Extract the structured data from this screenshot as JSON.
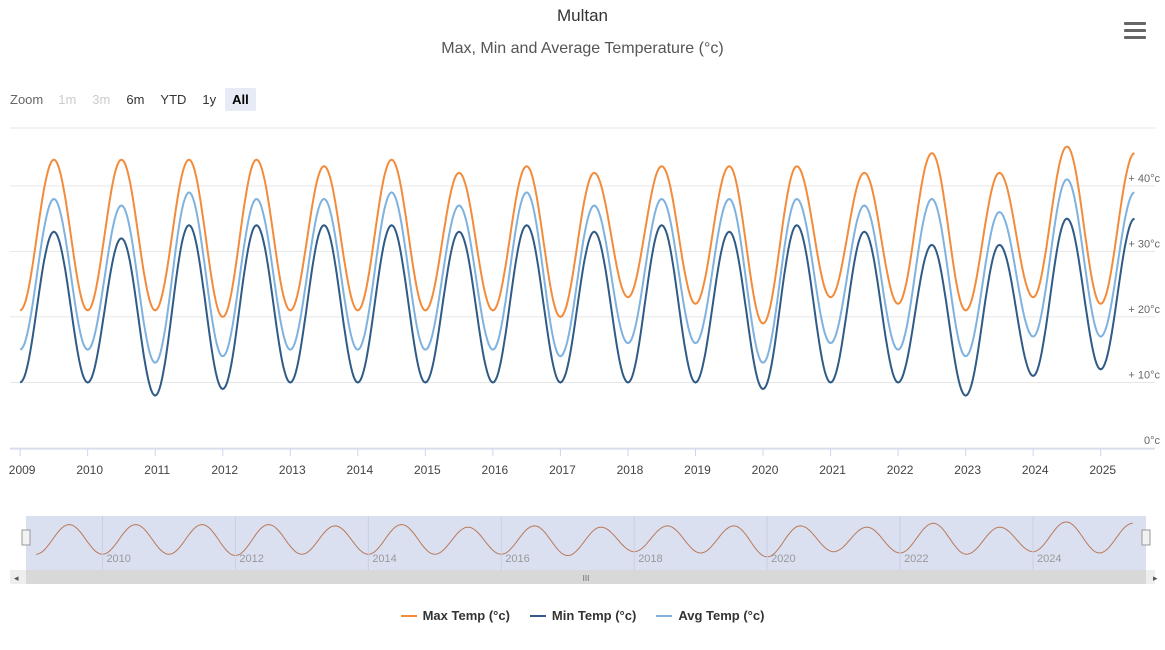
{
  "header": {
    "title": "Multan",
    "subtitle": "Max, Min and Average Temperature (°c)"
  },
  "menu": {
    "icon": "hamburger-menu-icon"
  },
  "zoom": {
    "label": "Zoom",
    "buttons": [
      {
        "label": "1m",
        "state": "disabled"
      },
      {
        "label": "3m",
        "state": "disabled"
      },
      {
        "label": "6m",
        "state": "normal"
      },
      {
        "label": "YTD",
        "state": "normal"
      },
      {
        "label": "1y",
        "state": "normal"
      },
      {
        "label": "All",
        "state": "active"
      }
    ]
  },
  "navigator": {
    "x_labels": [
      "2010",
      "2012",
      "2014",
      "2016",
      "2018",
      "2020",
      "2022",
      "2024"
    ],
    "scrollbar_grip": "III"
  },
  "colors": {
    "max": "#f28c3c",
    "min": "#2f5b86",
    "avg": "#7fb2df",
    "grid": "#e6e6e6",
    "navigator_mask": "#d7ddef"
  },
  "chart_data": {
    "type": "line",
    "title": "Multan",
    "subtitle": "Max, Min and Average Temperature (°c)",
    "x_tick_labels": [
      "2009",
      "2010",
      "2011",
      "2012",
      "2013",
      "2014",
      "2015",
      "2016",
      "2017",
      "2018",
      "2019",
      "2020",
      "2021",
      "2022",
      "2023",
      "2024",
      "2025"
    ],
    "y_tick_labels": [
      "0°c",
      "+ 10°c",
      "+ 20°c",
      "+ 30°c",
      "+ 40°c"
    ],
    "y_ticks": [
      0,
      10,
      20,
      30,
      40
    ],
    "ylim": [
      0,
      47
    ],
    "x_range": [
      2008.85,
      2025.7
    ],
    "grid": true,
    "y_axis_side": "right",
    "legend_position": "bottom-center",
    "series": [
      {
        "name": "Max Temp (°c)",
        "color": "#f28c3c",
        "annual_peak": 44,
        "annual_trough": 21,
        "x": [
          2009.0,
          2009.5,
          2010.0,
          2010.5,
          2011.0,
          2011.5,
          2012.0,
          2012.5,
          2013.0,
          2013.5,
          2014.0,
          2014.5,
          2015.0,
          2015.5,
          2016.0,
          2016.5,
          2017.0,
          2017.5,
          2018.0,
          2018.5,
          2019.0,
          2019.5,
          2020.0,
          2020.5,
          2021.0,
          2021.5,
          2022.0,
          2022.5,
          2023.0,
          2023.5,
          2024.0,
          2024.5,
          2025.0,
          2025.5
        ],
        "values": [
          21,
          44,
          21,
          44,
          21,
          44,
          20,
          44,
          21,
          43,
          21,
          44,
          21,
          42,
          21,
          43,
          20,
          42,
          23,
          43,
          22,
          43,
          19,
          43,
          23,
          42,
          22,
          45,
          21,
          42,
          23,
          46,
          22,
          45
        ]
      },
      {
        "name": "Min Temp (°c)",
        "color": "#2f5b86",
        "annual_peak": 33,
        "annual_trough": 9,
        "x": [
          2009.0,
          2009.5,
          2010.0,
          2010.5,
          2011.0,
          2011.5,
          2012.0,
          2012.5,
          2013.0,
          2013.5,
          2014.0,
          2014.5,
          2015.0,
          2015.5,
          2016.0,
          2016.5,
          2017.0,
          2017.5,
          2018.0,
          2018.5,
          2019.0,
          2019.5,
          2020.0,
          2020.5,
          2021.0,
          2021.5,
          2022.0,
          2022.5,
          2023.0,
          2023.5,
          2024.0,
          2024.5,
          2025.0,
          2025.5
        ],
        "values": [
          10,
          33,
          10,
          32,
          8,
          34,
          9,
          34,
          10,
          34,
          10,
          34,
          10,
          33,
          10,
          34,
          10,
          33,
          10,
          34,
          10,
          33,
          9,
          34,
          10,
          33,
          10,
          31,
          8,
          31,
          11,
          35,
          12,
          35
        ]
      },
      {
        "name": "Avg Temp (°c)",
        "color": "#7fb2df",
        "annual_peak": 38,
        "annual_trough": 15,
        "x": [
          2009.0,
          2009.5,
          2010.0,
          2010.5,
          2011.0,
          2011.5,
          2012.0,
          2012.5,
          2013.0,
          2013.5,
          2014.0,
          2014.5,
          2015.0,
          2015.5,
          2016.0,
          2016.5,
          2017.0,
          2017.5,
          2018.0,
          2018.5,
          2019.0,
          2019.5,
          2020.0,
          2020.5,
          2021.0,
          2021.5,
          2022.0,
          2022.5,
          2023.0,
          2023.5,
          2024.0,
          2024.5,
          2025.0,
          2025.5
        ],
        "values": [
          15,
          38,
          15,
          37,
          13,
          39,
          14,
          38,
          15,
          38,
          15,
          39,
          15,
          37,
          15,
          39,
          14,
          37,
          16,
          38,
          16,
          38,
          13,
          38,
          16,
          37,
          15,
          38,
          14,
          36,
          17,
          41,
          17,
          39
        ]
      }
    ]
  }
}
